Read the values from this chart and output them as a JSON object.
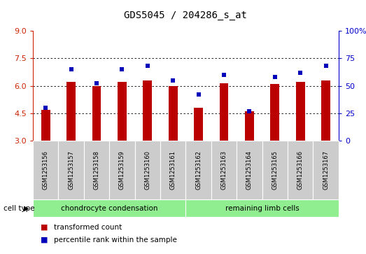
{
  "title": "GDS5045 / 204286_s_at",
  "samples": [
    "GSM1253156",
    "GSM1253157",
    "GSM1253158",
    "GSM1253159",
    "GSM1253160",
    "GSM1253161",
    "GSM1253162",
    "GSM1253163",
    "GSM1253164",
    "GSM1253165",
    "GSM1253166",
    "GSM1253167"
  ],
  "red_values": [
    4.7,
    6.2,
    6.0,
    6.2,
    6.3,
    6.0,
    4.8,
    6.15,
    4.6,
    6.1,
    6.2,
    6.3
  ],
  "blue_percentiles": [
    30,
    65,
    52,
    65,
    68,
    55,
    42,
    60,
    27,
    58,
    62,
    68
  ],
  "ylim_left": [
    3,
    9
  ],
  "ylim_right": [
    0,
    100
  ],
  "yticks_left": [
    3,
    4.5,
    6,
    7.5,
    9
  ],
  "yticks_right": [
    0,
    25,
    50,
    75,
    100
  ],
  "bar_color": "#bb0000",
  "dot_color": "#0000bb",
  "bar_bottom": 3.0,
  "bar_width": 0.35,
  "group1_label": "chondrocyte condensation",
  "group2_label": "remaining limb cells",
  "group_color": "#90ee90",
  "cell_type_label": "cell type",
  "legend_red": "transformed count",
  "legend_blue": "percentile rank within the sample",
  "tick_label_color_left": "#cc2200",
  "tick_label_color_right": "#0000cc",
  "label_box_color": "#cccccc",
  "ytick_fontsize": 8,
  "xtick_fontsize": 6,
  "title_fontsize": 10
}
